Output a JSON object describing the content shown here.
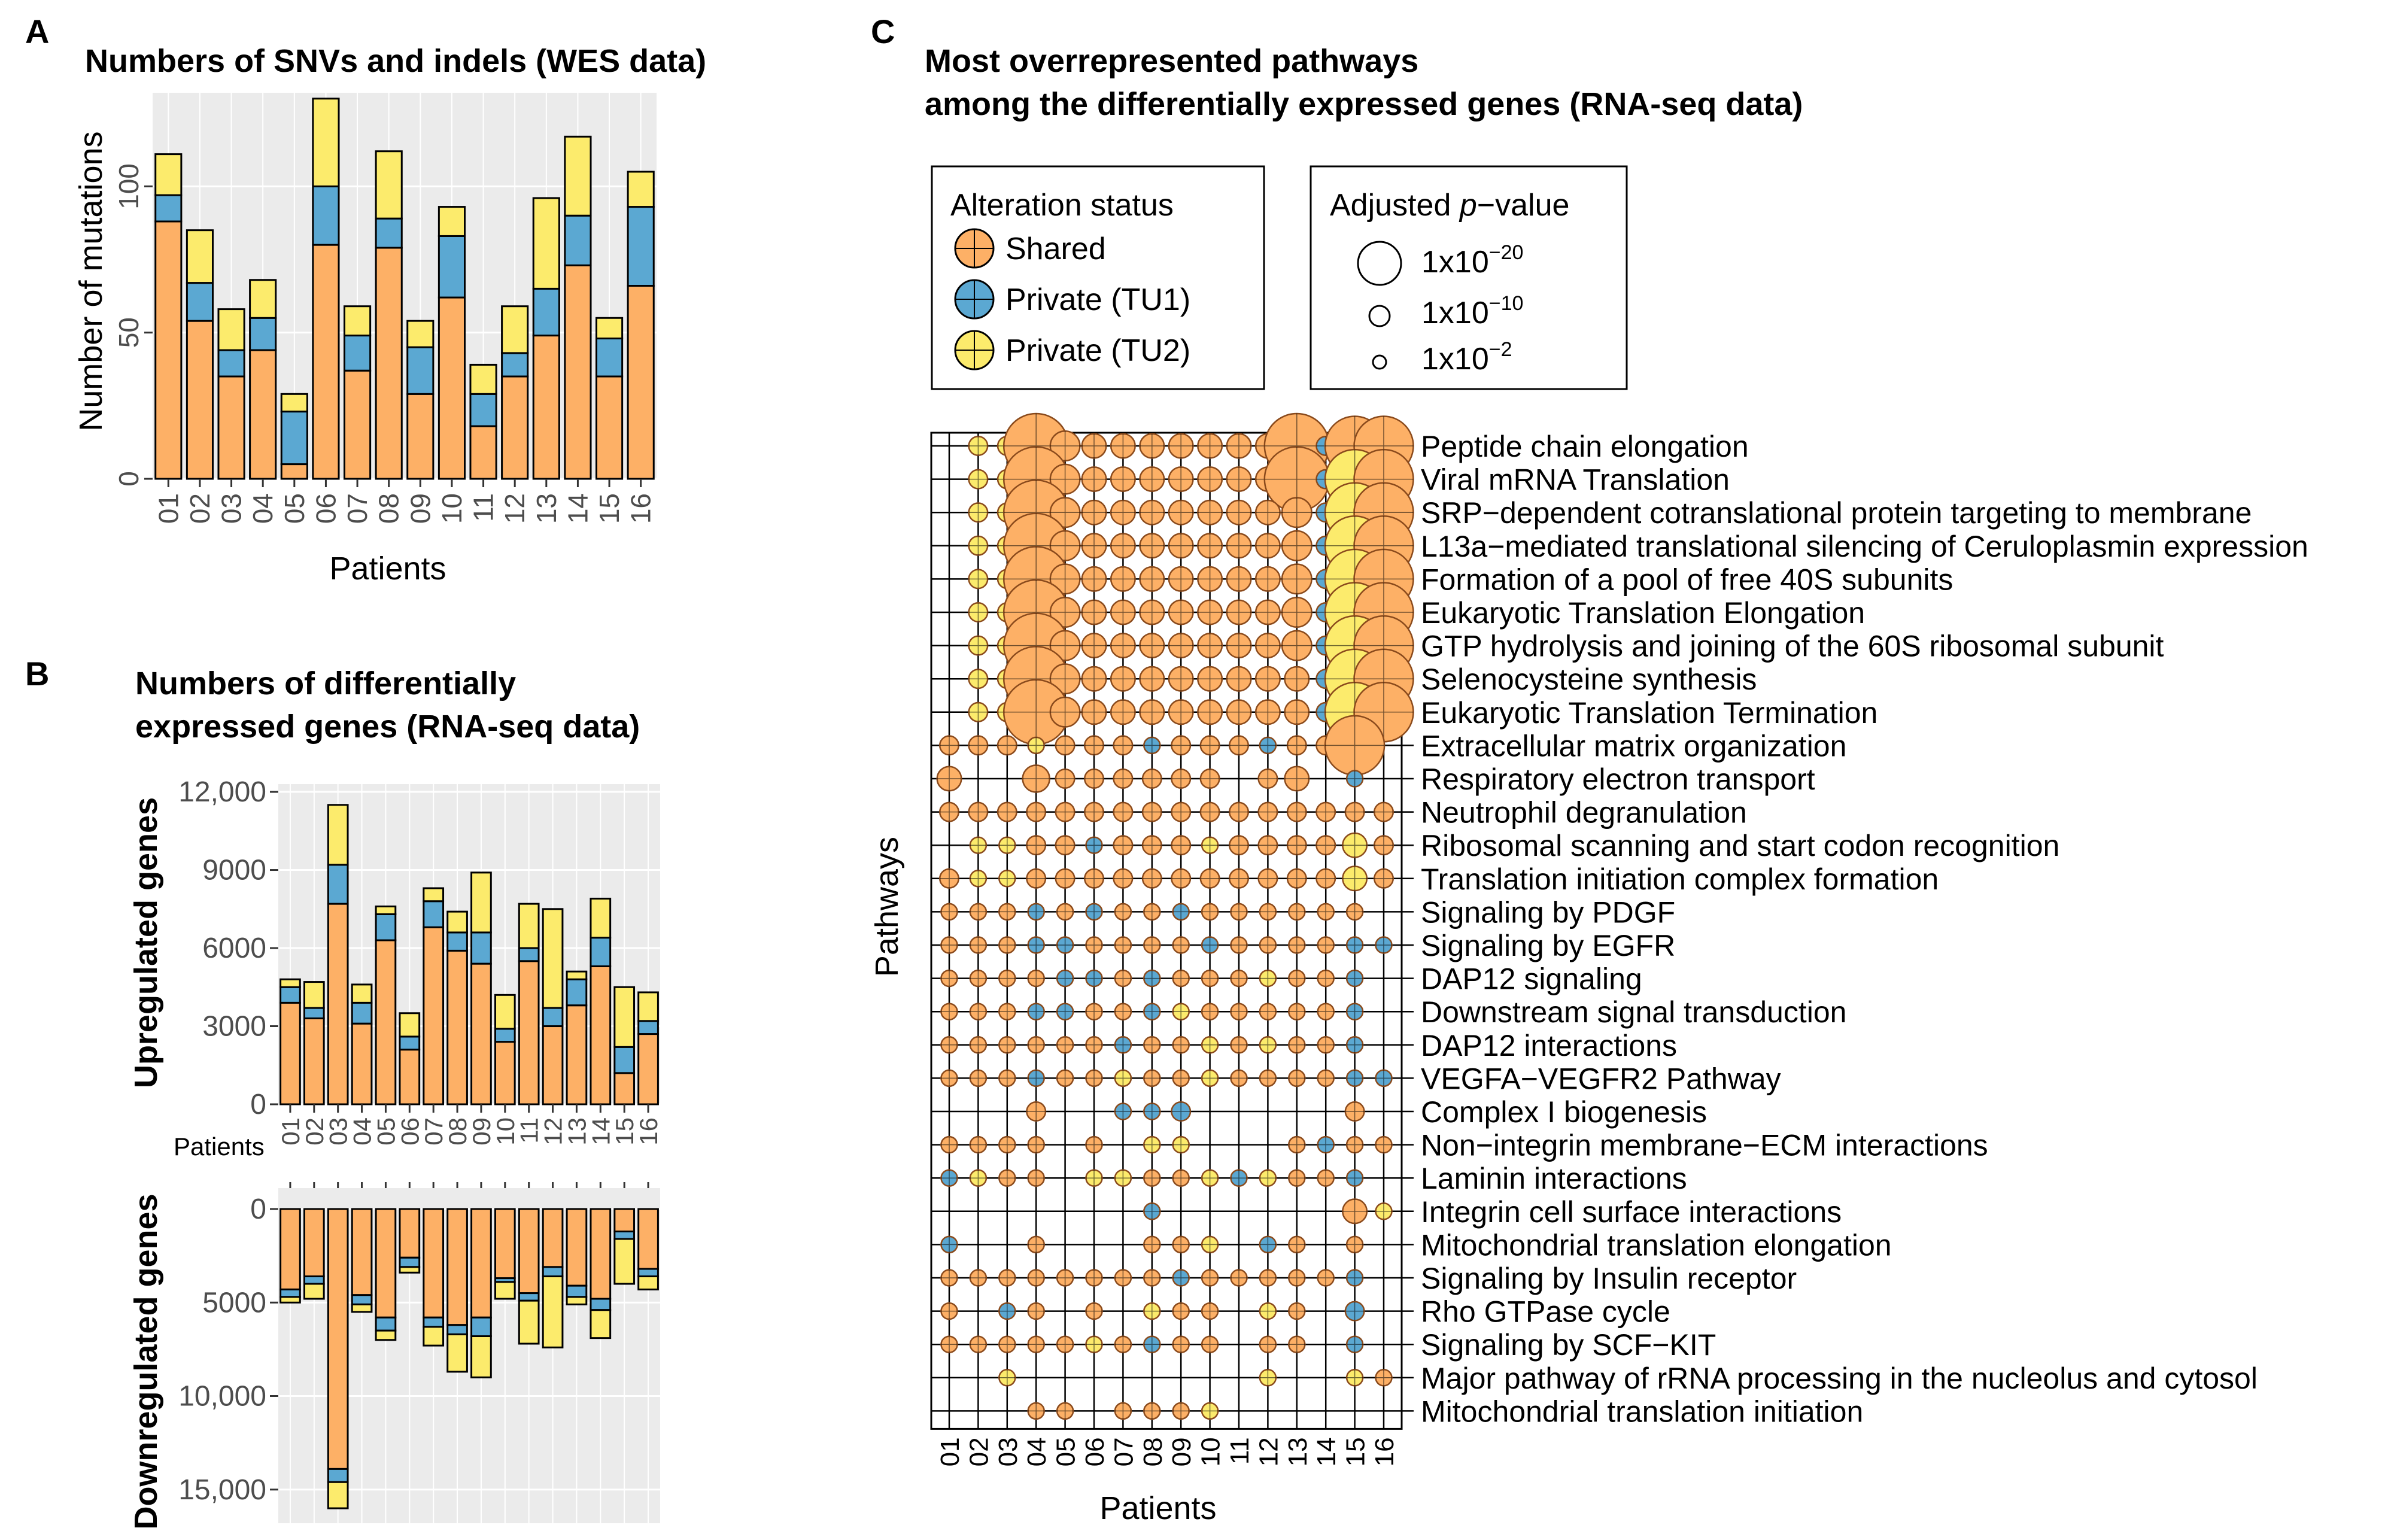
{
  "colors": {
    "shared": "#FDB066",
    "tu1": "#5BA8D2",
    "tu2": "#FCEB6C",
    "panel_bg": "#EBEBEB",
    "grid": "#FFFFFF",
    "bar_stroke": "#000000"
  },
  "panel_letters": {
    "a": "A",
    "b": "B",
    "c": "C"
  },
  "chart_data": [
    {
      "id": "A",
      "type": "bar",
      "stacked": true,
      "title": "Numbers of SNVs and indels (WES data)",
      "xlabel": "Patients",
      "ylabel": "Number of mutations",
      "categories": [
        "01",
        "02",
        "03",
        "04",
        "05",
        "06",
        "07",
        "08",
        "09",
        "10",
        "11",
        "12",
        "13",
        "14",
        "15",
        "16"
      ],
      "ylim": [
        0,
        132
      ],
      "yticks": [
        0,
        50,
        100
      ],
      "ytick_labels": [
        "0",
        "50",
        "100"
      ],
      "series": [
        {
          "name": "Shared",
          "values": [
            88,
            54,
            35,
            44,
            5,
            80,
            37,
            79,
            29,
            62,
            18,
            35,
            49,
            73,
            35,
            66
          ]
        },
        {
          "name": "Private (TU1)",
          "values": [
            9,
            13,
            9,
            11,
            18,
            20,
            12,
            10,
            16,
            21,
            11,
            8,
            16,
            17,
            13,
            27
          ]
        },
        {
          "name": "Private (TU2)",
          "values": [
            14,
            18,
            14,
            13,
            6,
            30,
            10,
            23,
            9,
            10,
            10,
            16,
            31,
            27,
            7,
            12
          ]
        }
      ]
    },
    {
      "id": "B-up",
      "type": "bar",
      "stacked": true,
      "title": "Numbers of differentially expressed genes (RNA-seq data)",
      "title_lines": [
        "Numbers of differentially",
        "expressed genes (RNA-seq data)"
      ],
      "xlabel": "Patients",
      "ylabel": "Upregulated genes",
      "categories": [
        "01",
        "02",
        "03",
        "04",
        "05",
        "06",
        "07",
        "08",
        "09",
        "10",
        "11",
        "12",
        "13",
        "14",
        "15",
        "16"
      ],
      "ylim": [
        0,
        12300
      ],
      "yticks": [
        0,
        3000,
        6000,
        9000,
        12000
      ],
      "ytick_labels": [
        "0",
        "3000",
        "6000",
        "9000",
        "12,000"
      ],
      "series": [
        {
          "name": "Shared",
          "values": [
            3900,
            3300,
            7700,
            3100,
            6300,
            2100,
            6800,
            5900,
            5400,
            2400,
            5500,
            3000,
            3800,
            5300,
            1200,
            2700
          ]
        },
        {
          "name": "Private (TU1)",
          "values": [
            600,
            400,
            1500,
            800,
            1000,
            500,
            1000,
            700,
            1200,
            500,
            500,
            700,
            1000,
            1100,
            1000,
            500
          ]
        },
        {
          "name": "Private (TU2)",
          "values": [
            300,
            1000,
            2300,
            700,
            300,
            900,
            500,
            800,
            2300,
            1300,
            1700,
            3800,
            300,
            1500,
            2300,
            1100
          ]
        }
      ]
    },
    {
      "id": "B-down",
      "type": "bar",
      "stacked": true,
      "ylabel": "Downregulated genes",
      "categories": [
        "01",
        "02",
        "03",
        "04",
        "05",
        "06",
        "07",
        "08",
        "09",
        "10",
        "11",
        "12",
        "13",
        "14",
        "15",
        "16"
      ],
      "ylim": [
        0,
        16800
      ],
      "yticks": [
        0,
        5000,
        10000,
        15000
      ],
      "ytick_labels": [
        "0",
        "5000",
        "10,000",
        "15,000"
      ],
      "series": [
        {
          "name": "Shared",
          "values": [
            4300,
            3600,
            13900,
            4600,
            5800,
            2600,
            5800,
            6200,
            5800,
            3700,
            4500,
            3100,
            4100,
            4800,
            1200,
            3200
          ]
        },
        {
          "name": "Private (TU1)",
          "values": [
            400,
            400,
            700,
            500,
            700,
            500,
            500,
            500,
            1000,
            200,
            400,
            500,
            600,
            600,
            400,
            400
          ]
        },
        {
          "name": "Private (TU2)",
          "values": [
            300,
            800,
            1400,
            400,
            500,
            300,
            1000,
            2000,
            2200,
            900,
            2300,
            3800,
            400,
            1500,
            2400,
            700
          ]
        }
      ]
    },
    {
      "id": "C",
      "type": "scatter",
      "title_lines": [
        "Most overrepresented pathways",
        "among the differentially expressed genes (RNA-seq data)"
      ],
      "xlabel": "Patients",
      "ylabel": "Pathways",
      "patients": [
        "01",
        "02",
        "03",
        "04",
        "05",
        "06",
        "07",
        "08",
        "09",
        "10",
        "11",
        "12",
        "13",
        "14",
        "15",
        "16"
      ],
      "pathways": [
        "Peptide chain elongation",
        "Viral mRNA Translation",
        "SRP−dependent cotranslational protein targeting to membrane",
        "L13a−mediated translational silencing of Ceruloplasmin expression",
        "Formation of a pool of free 40S subunits",
        "Eukaryotic Translation Elongation",
        "GTP hydrolysis and joining of the 60S ribosomal subunit",
        "Selenocysteine synthesis",
        "Eukaryotic Translation Termination",
        "Extracellular matrix organization",
        "Respiratory electron transport",
        "Neutrophil degranulation",
        "Ribosomal scanning and start codon recognition",
        "Translation initiation complex formation",
        "Signaling by PDGF",
        "Signaling by EGFR",
        "DAP12 signaling",
        "Downstream signal transduction",
        "DAP12 interactions",
        "VEGFA−VEGFR2 Pathway",
        "Complex I biogenesis",
        "Non−integrin membrane−ECM interactions",
        "Laminin interactions",
        "Integrin cell surface interactions",
        "Mitochondrial translation elongation",
        "Signaling by Insulin receptor",
        "Rho GTPase cycle",
        "Signaling by SCF−KIT",
        "Major pathway of rRNA processing in the nucleolus and cytosol",
        "Mitochondrial translation initiation"
      ],
      "status_codes": {
        "S": "Shared",
        "A": "Private (TU1)",
        "B": "Private (TU2)"
      },
      "cells_note": "each row string: 16 cells (patients 01..16), code letter (S/A/B) or '.' for none + neglog10 adjusted p-value",
      "rows": [
        ".0 B3 B3 S20 S7 S5 S5 S5 S5 S5 S5 S5 S20 A3 S18 S18",
        ".0 B3 B3 S20 S7 S5 S5 S5 S5 S5 S5 S5 S20 A3 B18 S18",
        ".0 B3 B3 S20 S7 S5 S5 S5 S5 S5 S5 S5 S7 A3 B18 S18",
        ".0 B3 B3 S20 S7 S5 S5 S5 S5 S5 S5 S5 S7 A3 B18 S18",
        ".0 B3 B3 S20 S7 S5 S5 S5 S5 S5 S5 S5 S7 A3 B18 S18",
        ".0 B3 B3 S20 S7 S5 S5 S5 S5 S5 S5 S5 S7 A3 B18 S18",
        ".0 B3 B3 S20 S7 S5 S5 S5 S5 S5 S5 S5 S7 A3 B18 S18",
        ".0 B3 B3 S20 S7 S5 S5 S5 S5 S5 S5 S5 S5 A3 B18 S18",
        ".0 B3 B3 S20 S7 S5 S5 S5 S5 S5 S5 S5 S5 A3 B18 S18",
        "S3 S3 S3 B2 S3 S3 S3 A2 S3 S3 S3 A2 S3 S3 S18 .0",
        "S5 .0 .0 S6 S3 S3 S3 S3 S3 S3 .0 S3 S5 .0 A2 .0",
        "S3 S3 S3 S3 S3 S3 S3 S3 S3 S3 S3 S3 S3 S3 S3 S3",
        ".0 B2 B2 S3 S3 A2 S3 S3 S3 B2 S3 S3 S3 S3 B5 S3",
        "S3 B2 B2 S3 S3 S3 S3 S3 S3 S3 S3 S3 S3 S3 B5 S3",
        "S2 S2 S2 A2 S2 A2 S2 S2 A2 S2 S2 S2 S2 S2 S2 .0",
        "S2 S2 S2 A2 A2 S2 S2 S2 S2 A2 S2 S2 S2 S2 A2 A2",
        "S2 S2 S2 S2 A2 A2 S2 A2 S2 S2 S2 B2 S2 S2 A2 .0",
        "S2 S2 S2 A2 A2 S2 S2 A2 B2 S2 S2 S2 S2 S2 A2 .0",
        "S2 S2 S2 S2 S2 S2 A2 S2 S2 B2 S2 B2 S2 S2 A2 .0",
        "S2 S2 S2 A2 S2 S2 B2 S2 S2 B2 S2 S2 S2 S2 A2 A2",
        ".0 .0 .0 S3 .0 .0 A2 A2 A3 .0 .0 .0 .0 .0 S3 .0",
        "S2 S2 S2 S2 .0 S2 .0 B2 B2 .0 .0 .0 S2 A2 S2 S2",
        "A2 B2 S2 S2 .0 B2 B2 S2 S2 B2 A2 B2 S2 S2 A2 .0",
        ".0 .0 .0 .0 .0 .0 .0 A2 .0 .0 .0 .0 .0 .0 S5 B2",
        "A2 .0 .0 S2 .0 .0 .0 S2 S2 B2 .0 A2 S2 .0 S2 .0",
        "S2 S2 S2 S2 S2 S2 S2 S2 A2 S2 S2 S2 S2 S2 A2 .0",
        "S2 .0 A2 S2 .0 S2 .0 B2 S2 S2 .0 B2 S2 .0 A3 .0",
        "S2 S2 S2 S2 S2 B2 S2 A2 S2 S2 .0 S2 S2 .0 A2 .0",
        ".0 .0 B2 .0 .0 .0 .0 .0 .0 .0 .0 B2 .0 .0 B2 S2",
        ".0 .0 .0 S2 S2 .0 S2 S2 S2 B2 .0 .0 .0 .0 .0 .0"
      ]
    }
  ],
  "legend_status": {
    "title": "Alteration status",
    "items": [
      "Shared",
      "Private (TU1)",
      "Private (TU2)"
    ]
  },
  "legend_pvalue": {
    "title_prefix": "Adjusted ",
    "title_italic": "p",
    "title_suffix": "−value",
    "items": [
      {
        "base": "1x10",
        "exp": "−20"
      },
      {
        "base": "1x10",
        "exp": "−10"
      },
      {
        "base": "1x10",
        "exp": "−2"
      }
    ]
  },
  "b_patients_label": "Patients"
}
